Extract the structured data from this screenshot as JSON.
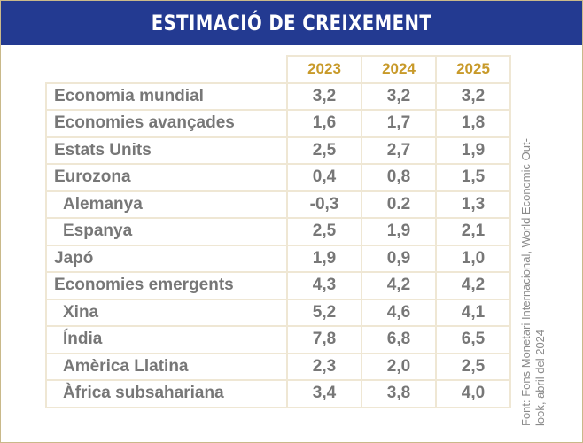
{
  "title": "ESTIMACIÓ DE CREIXEMENT",
  "years": [
    "2023",
    "2024",
    "2025"
  ],
  "rows": [
    {
      "label": "Economia mundial",
      "values": [
        "3,2",
        "3,2",
        "3,2"
      ]
    },
    {
      "label": "Economies avançades",
      "values": [
        "1,6",
        "1,7",
        "1,8"
      ]
    },
    {
      "label": "Estats Units",
      "values": [
        "2,5",
        "2,7",
        "1,9"
      ]
    },
    {
      "label": "Eurozona",
      "values": [
        "0,4",
        "0,8",
        "1,5"
      ]
    },
    {
      "label": "Alemanya",
      "values": [
        "-0,3",
        "0.2",
        "1,3"
      ]
    },
    {
      "label": "Espanya",
      "values": [
        "2,5",
        "1,9",
        "2,1"
      ]
    },
    {
      "label": "Japó",
      "values": [
        "1,9",
        "0,9",
        "1,0"
      ]
    },
    {
      "label": "Economies emergents",
      "values": [
        "4,3",
        "4,2",
        "4,2"
      ]
    },
    {
      "label": "Xina",
      "values": [
        "5,2",
        "4,6",
        "4,1"
      ]
    },
    {
      "label": "Índia",
      "values": [
        "7,8",
        "6,8",
        "6,5"
      ]
    },
    {
      "label": "Amèrica Llatina",
      "values": [
        "2,3",
        "2,0",
        "2,5"
      ]
    },
    {
      "label": "Àfrica subsahariana",
      "values": [
        "3,4",
        "3,8",
        "4,0"
      ]
    }
  ],
  "source": "Font: Fons Monetari Internacional, World Economic Out-\nlook, abril del 2024"
}
